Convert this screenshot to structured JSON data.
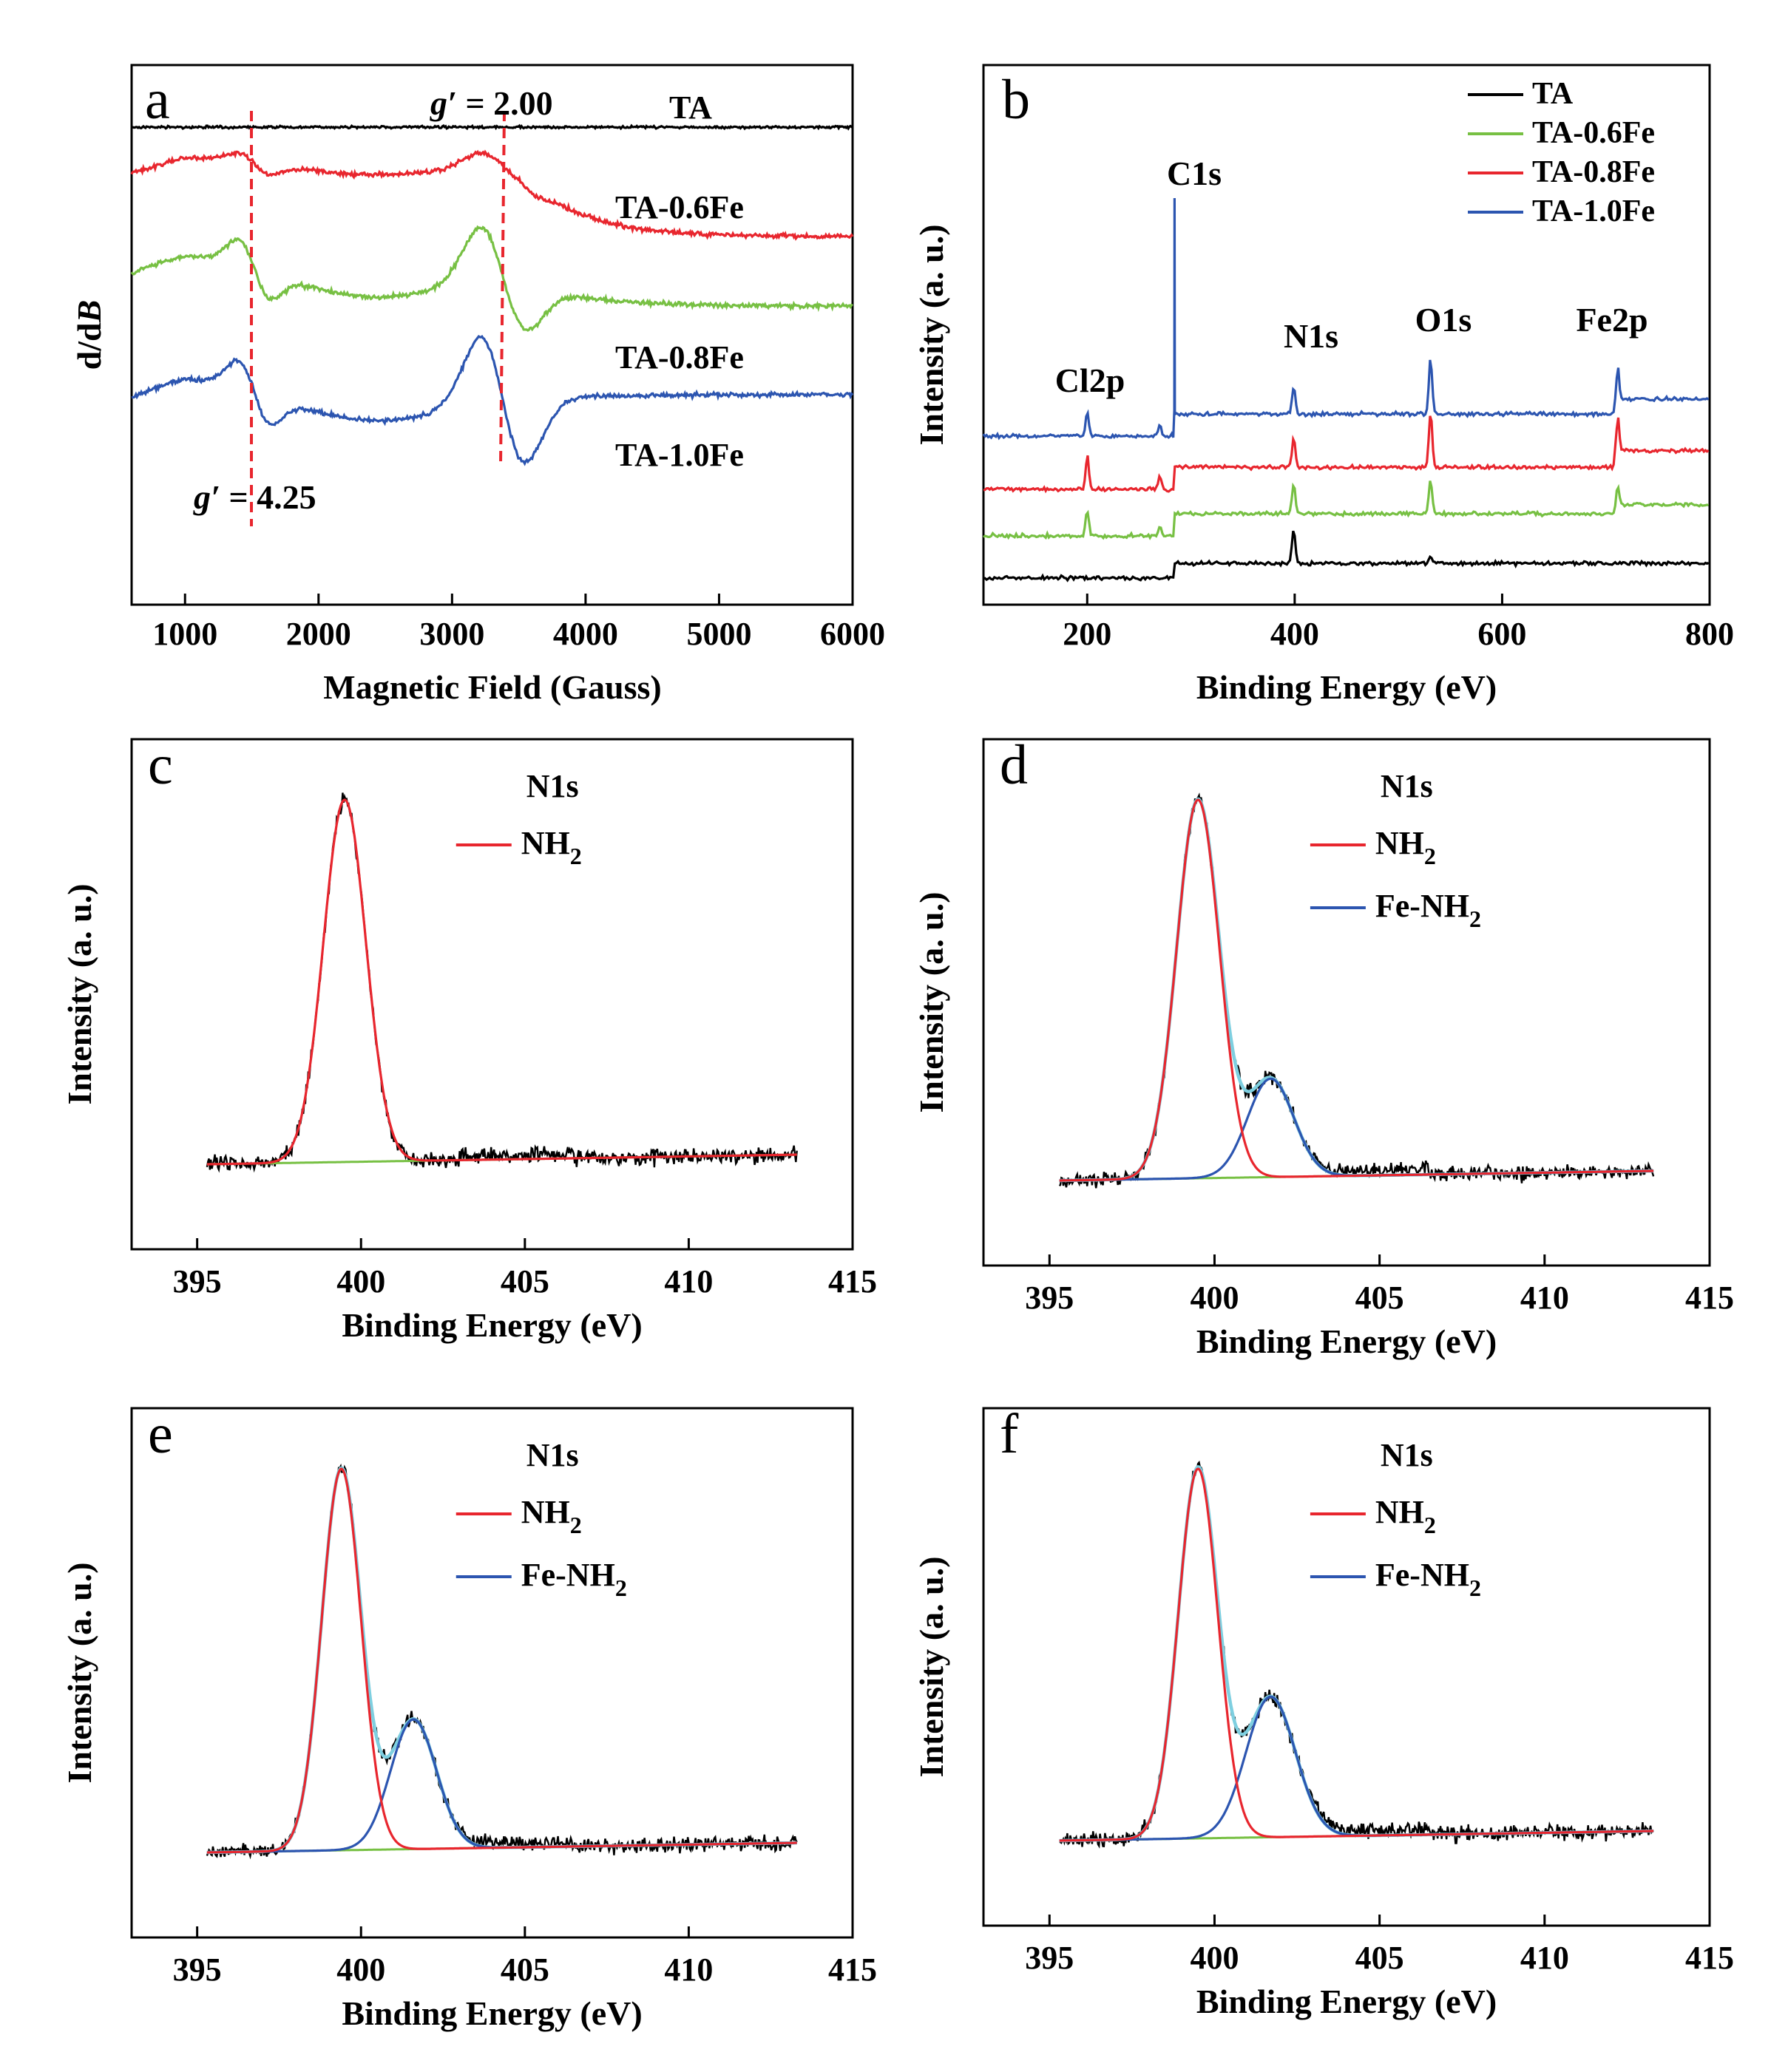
{
  "figure": {
    "panels": [
      {
        "id": "a",
        "label": "a",
        "type": "line",
        "xlabel": "Magnetic Field (Gauss)",
        "ylabel_main": "d",
        "ylabel_slash": "/d",
        "ylabel_italic": "B",
        "xlim": [
          600,
          6000
        ],
        "ylim": [
          0,
          1
        ],
        "xticks": [
          1000,
          2000,
          3000,
          4000,
          5000,
          6000
        ],
        "annotations": {
          "g_top_italic": "g′",
          "g_top_value": " = 2.00",
          "g_bottom_italic": "g′",
          "g_bottom_value": " = 4.25",
          "g_top_field": 3350,
          "g_bottom_field": 1500
        },
        "series": [
          {
            "name": "TA",
            "color": "#000000"
          },
          {
            "name": "TA-0.6Fe",
            "color": "#e8262e"
          },
          {
            "name": "TA-0.8Fe",
            "color": "#77c043"
          },
          {
            "name": "TA-1.0Fe",
            "color": "#2c55b0"
          }
        ]
      },
      {
        "id": "b",
        "label": "b",
        "type": "line",
        "xlabel": "Binding Energy (eV)",
        "ylabel": "Intensity (a. u.)",
        "xlim": [
          100,
          800
        ],
        "xticks": [
          200,
          400,
          600,
          800
        ],
        "peaks": [
          {
            "label": "Cl2p",
            "energy": 200
          },
          {
            "label": "C1s",
            "energy": 284
          },
          {
            "label": "N1s",
            "energy": 399
          },
          {
            "label": "O1s",
            "energy": 531
          },
          {
            "label": "Fe2p",
            "energy": 711
          }
        ],
        "legend": [
          "TA",
          "TA-0.6Fe",
          "TA-0.8Fe",
          "TA-1.0Fe"
        ],
        "legend_colors": [
          "#000000",
          "#77c043",
          "#e8262e",
          "#2c55b0"
        ]
      },
      {
        "id": "c",
        "label": "c",
        "type": "line",
        "xlabel": "Binding Energy (eV)",
        "ylabel": "Intensity (a. u.)",
        "xlim": [
          393,
          415
        ],
        "xticks": [
          395,
          400,
          405,
          410,
          415
        ],
        "legend_title": "N1s",
        "legend": [
          {
            "main": "NH",
            "sub": "2",
            "color": "#e8262e"
          }
        ],
        "components": [
          {
            "name": "NH2",
            "center": 399.5,
            "height": 1.0,
            "width": 0.65
          }
        ]
      },
      {
        "id": "d",
        "label": "d",
        "type": "line",
        "xlabel": "Binding Energy (eV)",
        "ylabel": "Intensity (a. u.)",
        "xlim": [
          393,
          415
        ],
        "xticks": [
          395,
          400,
          405,
          410,
          415
        ],
        "legend_title": "N1s",
        "legend": [
          {
            "main": "NH",
            "sub": "2",
            "color": "#e8262e"
          },
          {
            "main": "Fe-NH",
            "sub": "2",
            "color": "#2c55b0"
          }
        ],
        "components": [
          {
            "name": "NH2",
            "center": 399.5,
            "height": 1.0,
            "width": 0.65
          },
          {
            "name": "Fe-NH2",
            "center": 401.7,
            "height": 0.26,
            "width": 0.7
          }
        ]
      },
      {
        "id": "e",
        "label": "e",
        "type": "line",
        "xlabel": "Binding Energy (eV)",
        "ylabel": "Intensity (a. u.)",
        "xlim": [
          393,
          415
        ],
        "xticks": [
          395,
          400,
          405,
          410,
          415
        ],
        "legend_title": "N1s",
        "legend": [
          {
            "main": "NH",
            "sub": "2",
            "color": "#e8262e"
          },
          {
            "main": "Fe-NH",
            "sub": "2",
            "color": "#2c55b0"
          }
        ],
        "components": [
          {
            "name": "NH2",
            "center": 399.4,
            "height": 1.0,
            "width": 0.6
          },
          {
            "name": "Fe-NH2",
            "center": 401.6,
            "height": 0.34,
            "width": 0.7
          }
        ]
      },
      {
        "id": "f",
        "label": "f",
        "type": "line",
        "xlabel": "Binding Energy (eV)",
        "ylabel": "Intensity (a. u.)",
        "xlim": [
          393,
          415
        ],
        "xticks": [
          395,
          400,
          405,
          410,
          415
        ],
        "legend_title": "N1s",
        "legend": [
          {
            "main": "NH",
            "sub": "2",
            "color": "#e8262e"
          },
          {
            "main": "Fe-NH",
            "sub": "2",
            "color": "#2c55b0"
          }
        ],
        "components": [
          {
            "name": "NH2",
            "center": 399.5,
            "height": 1.0,
            "width": 0.6
          },
          {
            "name": "Fe-NH2",
            "center": 401.7,
            "height": 0.38,
            "width": 0.75
          }
        ]
      }
    ]
  },
  "chart_data": [
    {
      "type": "line",
      "panel": "a",
      "xlabel": "Magnetic Field (Gauss)",
      "ylabel": "d/dB",
      "xlim": [
        600,
        6000
      ],
      "series": [
        {
          "name": "TA"
        },
        {
          "name": "TA-0.6Fe"
        },
        {
          "name": "TA-0.8Fe"
        },
        {
          "name": "TA-1.0Fe"
        }
      ]
    },
    {
      "type": "line",
      "panel": "b",
      "xlabel": "Binding Energy (eV)",
      "ylabel": "Intensity (a. u.)",
      "xlim": [
        100,
        800
      ],
      "series": [
        {
          "name": "TA"
        },
        {
          "name": "TA-0.6Fe"
        },
        {
          "name": "TA-0.8Fe"
        },
        {
          "name": "TA-1.0Fe"
        }
      ]
    },
    {
      "type": "line",
      "panel": "c",
      "xlabel": "Binding Energy (eV)",
      "ylabel": "Intensity (a. u.)",
      "xlim": [
        393,
        415
      ],
      "peaks_eV": [
        399.5
      ]
    },
    {
      "type": "line",
      "panel": "d",
      "xlabel": "Binding Energy (eV)",
      "ylabel": "Intensity (a. u.)",
      "xlim": [
        393,
        415
      ],
      "peaks_eV": [
        399.5,
        401.7
      ]
    },
    {
      "type": "line",
      "panel": "e",
      "xlabel": "Binding Energy (eV)",
      "ylabel": "Intensity (a. u.)",
      "xlim": [
        393,
        415
      ],
      "peaks_eV": [
        399.4,
        401.6
      ]
    },
    {
      "type": "line",
      "panel": "f",
      "xlabel": "Binding Energy (eV)",
      "ylabel": "Intensity (a. u.)",
      "xlim": [
        393,
        415
      ],
      "peaks_eV": [
        399.5,
        401.7
      ]
    }
  ]
}
